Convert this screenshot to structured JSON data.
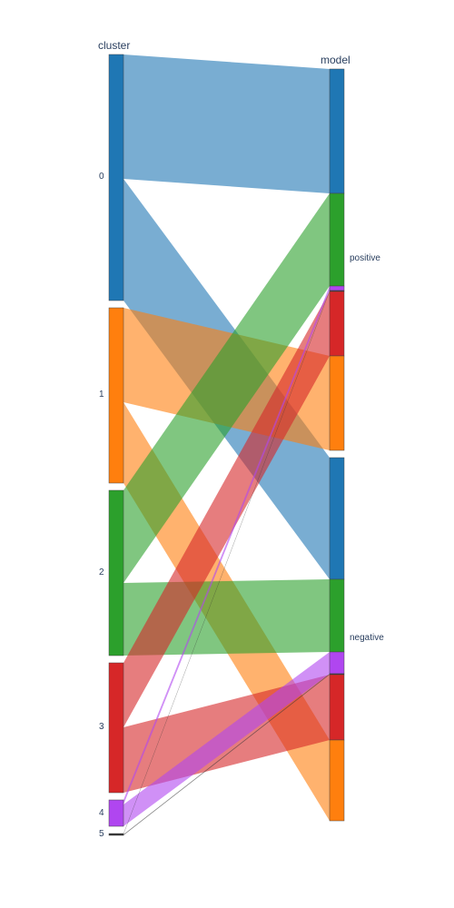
{
  "columns": {
    "left_title": "cluster",
    "right_title": "model"
  },
  "chart_data": {
    "type": "sankey",
    "left_nodes": [
      {
        "label": "0",
        "color": "#1f77b4"
      },
      {
        "label": "1",
        "color": "#ff7f0e"
      },
      {
        "label": "2",
        "color": "#2ca02c"
      },
      {
        "label": "3",
        "color": "#d62728"
      },
      {
        "label": "4",
        "color": "#b046f0"
      },
      {
        "label": "5",
        "color": "#333333"
      }
    ],
    "right_groups": [
      {
        "label": "positive"
      },
      {
        "label": "negative"
      }
    ],
    "flows": [
      {
        "source": "0",
        "target": "positive",
        "value": 137
      },
      {
        "source": "0",
        "target": "negative",
        "value": 134
      },
      {
        "source": "1",
        "target": "positive",
        "value": 104
      },
      {
        "source": "1",
        "target": "negative",
        "value": 89
      },
      {
        "source": "2",
        "target": "positive",
        "value": 102
      },
      {
        "source": "2",
        "target": "negative",
        "value": 80
      },
      {
        "source": "3",
        "target": "positive",
        "value": 71
      },
      {
        "source": "3",
        "target": "negative",
        "value": 72
      },
      {
        "source": "4",
        "target": "positive",
        "value": 5
      },
      {
        "source": "4",
        "target": "negative",
        "value": 24
      },
      {
        "source": "5",
        "target": "positive",
        "value": 1
      },
      {
        "source": "5",
        "target": "negative",
        "value": 1
      }
    ]
  }
}
